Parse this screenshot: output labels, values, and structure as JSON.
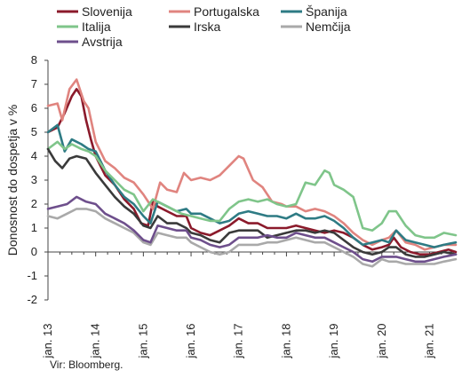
{
  "chart_data": {
    "type": "line",
    "title": "",
    "ylabel": "Donosnost do dospetja v %",
    "xlabel": "",
    "ylim": [
      -2,
      8
    ],
    "yticks": [
      -2,
      -1,
      0,
      1,
      2,
      3,
      4,
      5,
      6,
      7,
      8
    ],
    "xlim": [
      2013.0,
      2021.55
    ],
    "xticks": [
      {
        "x": 2013.0,
        "label": "jan. 13"
      },
      {
        "x": 2014.0,
        "label": "jan. 14"
      },
      {
        "x": 2015.0,
        "label": "jan. 15"
      },
      {
        "x": 2016.0,
        "label": "jan. 16"
      },
      {
        "x": 2017.0,
        "label": "jan. 17"
      },
      {
        "x": 2018.0,
        "label": "jan. 18"
      },
      {
        "x": 2019.0,
        "label": "jan. 19"
      },
      {
        "x": 2020.0,
        "label": "jan. 20"
      },
      {
        "x": 2021.0,
        "label": "jan. 21"
      }
    ],
    "grid": false,
    "legend_position": "top",
    "series": [
      {
        "name": "Slovenija",
        "color": "#8b1a2b",
        "x": [
          2013.0,
          2013.2,
          2013.35,
          2013.5,
          2013.6,
          2013.7,
          2013.8,
          2013.9,
          2014.0,
          2014.2,
          2014.4,
          2014.6,
          2014.8,
          2014.95,
          2015.1,
          2015.2,
          2015.3,
          2015.5,
          2015.7,
          2015.9,
          2016.0,
          2016.2,
          2016.4,
          2016.6,
          2016.8,
          2017.0,
          2017.2,
          2017.4,
          2017.6,
          2017.8,
          2018.0,
          2018.2,
          2018.4,
          2018.6,
          2018.8,
          2019.0,
          2019.2,
          2019.4,
          2019.6,
          2019.8,
          2020.0,
          2020.15,
          2020.25,
          2020.4,
          2020.6,
          2020.8,
          2021.0,
          2021.2,
          2021.4,
          2021.55
        ],
        "y": [
          5.0,
          5.2,
          5.8,
          6.5,
          6.8,
          6.5,
          5.5,
          4.7,
          4.0,
          3.2,
          2.8,
          2.2,
          1.8,
          1.2,
          1.1,
          2.1,
          1.9,
          1.7,
          1.5,
          1.5,
          1.0,
          0.8,
          0.7,
          0.9,
          1.1,
          1.4,
          1.2,
          1.2,
          1.0,
          1.0,
          1.0,
          1.1,
          1.0,
          0.9,
          0.8,
          0.9,
          0.8,
          0.6,
          0.3,
          0.1,
          0.2,
          0.3,
          0.6,
          0.2,
          0.0,
          -0.1,
          -0.1,
          0.0,
          0.1,
          0.0
        ]
      },
      {
        "name": "Portugalska",
        "color": "#e0847f",
        "x": [
          2013.0,
          2013.2,
          2013.3,
          2013.45,
          2013.6,
          2013.75,
          2013.85,
          2014.0,
          2014.2,
          2014.4,
          2014.6,
          2014.8,
          2015.0,
          2015.2,
          2015.35,
          2015.5,
          2015.7,
          2015.85,
          2016.0,
          2016.2,
          2016.4,
          2016.6,
          2016.8,
          2017.0,
          2017.1,
          2017.3,
          2017.5,
          2017.7,
          2017.9,
          2018.0,
          2018.2,
          2018.4,
          2018.6,
          2018.8,
          2019.0,
          2019.2,
          2019.4,
          2019.6,
          2019.8,
          2020.0,
          2020.15,
          2020.3,
          2020.5,
          2020.7,
          2020.9,
          2021.1,
          2021.3,
          2021.55
        ],
        "y": [
          6.1,
          6.2,
          5.5,
          6.8,
          7.2,
          6.3,
          6.0,
          4.6,
          3.8,
          3.5,
          3.1,
          2.9,
          2.4,
          1.8,
          2.9,
          2.6,
          2.5,
          3.3,
          3.0,
          3.1,
          3.0,
          3.2,
          3.6,
          4.0,
          3.9,
          3.0,
          2.7,
          2.1,
          2.0,
          1.9,
          1.9,
          1.7,
          1.8,
          1.7,
          1.5,
          1.2,
          0.8,
          0.5,
          0.3,
          0.5,
          0.6,
          0.9,
          0.4,
          0.3,
          0.1,
          0.2,
          0.3,
          0.3
        ]
      },
      {
        "name": "Španija",
        "color": "#2e7b84",
        "x": [
          2013.0,
          2013.2,
          2013.35,
          2013.5,
          2013.7,
          2013.85,
          2014.0,
          2014.2,
          2014.4,
          2014.6,
          2014.8,
          2015.0,
          2015.15,
          2015.3,
          2015.5,
          2015.7,
          2015.9,
          2016.0,
          2016.2,
          2016.4,
          2016.6,
          2016.8,
          2017.0,
          2017.2,
          2017.4,
          2017.6,
          2017.8,
          2018.0,
          2018.2,
          2018.4,
          2018.6,
          2018.8,
          2019.0,
          2019.2,
          2019.4,
          2019.6,
          2019.8,
          2020.0,
          2020.15,
          2020.3,
          2020.5,
          2020.7,
          2020.9,
          2021.1,
          2021.3,
          2021.55
        ],
        "y": [
          5.0,
          5.3,
          4.2,
          4.7,
          4.5,
          4.3,
          4.2,
          3.4,
          2.8,
          2.3,
          2.0,
          1.5,
          1.2,
          2.1,
          1.9,
          1.7,
          1.8,
          1.6,
          1.6,
          1.4,
          1.2,
          1.3,
          1.6,
          1.7,
          1.6,
          1.5,
          1.5,
          1.4,
          1.6,
          1.4,
          1.4,
          1.5,
          1.3,
          1.0,
          0.6,
          0.3,
          0.4,
          0.5,
          0.4,
          0.9,
          0.5,
          0.4,
          0.3,
          0.2,
          0.3,
          0.4
        ]
      },
      {
        "name": "Italija",
        "color": "#7fc58a",
        "x": [
          2013.0,
          2013.2,
          2013.35,
          2013.5,
          2013.7,
          2013.85,
          2014.0,
          2014.2,
          2014.4,
          2014.6,
          2014.8,
          2015.0,
          2015.2,
          2015.4,
          2015.6,
          2015.8,
          2016.0,
          2016.2,
          2016.4,
          2016.6,
          2016.8,
          2017.0,
          2017.2,
          2017.4,
          2017.6,
          2017.8,
          2018.0,
          2018.2,
          2018.4,
          2018.6,
          2018.8,
          2018.9,
          2019.0,
          2019.2,
          2019.4,
          2019.6,
          2019.8,
          2020.0,
          2020.15,
          2020.3,
          2020.5,
          2020.7,
          2020.9,
          2021.1,
          2021.3,
          2021.55
        ],
        "y": [
          4.3,
          4.6,
          4.3,
          4.5,
          4.3,
          4.2,
          4.0,
          3.4,
          3.0,
          2.6,
          2.4,
          1.7,
          2.2,
          2.0,
          1.8,
          1.6,
          1.5,
          1.4,
          1.3,
          1.3,
          1.8,
          2.1,
          2.2,
          2.1,
          2.2,
          2.0,
          1.9,
          2.0,
          2.9,
          2.8,
          3.4,
          3.3,
          2.8,
          2.6,
          2.3,
          1.0,
          0.9,
          1.2,
          1.7,
          1.7,
          1.1,
          0.7,
          0.6,
          0.6,
          0.8,
          0.7
        ]
      },
      {
        "name": "Irska",
        "color": "#3a3a3a",
        "x": [
          2013.0,
          2013.15,
          2013.3,
          2013.45,
          2013.6,
          2013.8,
          2014.0,
          2014.2,
          2014.4,
          2014.6,
          2014.8,
          2015.0,
          2015.15,
          2015.3,
          2015.5,
          2015.7,
          2015.9,
          2016.0,
          2016.2,
          2016.4,
          2016.6,
          2016.8,
          2017.0,
          2017.2,
          2017.4,
          2017.6,
          2017.8,
          2018.0,
          2018.2,
          2018.4,
          2018.6,
          2018.8,
          2019.0,
          2019.2,
          2019.4,
          2019.6,
          2019.8,
          2020.0,
          2020.15,
          2020.3,
          2020.5,
          2020.7,
          2020.9,
          2021.1,
          2021.3,
          2021.55
        ],
        "y": [
          4.3,
          3.8,
          3.5,
          3.9,
          4.0,
          3.9,
          3.3,
          2.8,
          2.3,
          1.9,
          1.6,
          1.1,
          1.0,
          1.5,
          1.2,
          1.2,
          1.0,
          0.8,
          0.7,
          0.5,
          0.4,
          0.8,
          0.9,
          0.9,
          0.9,
          0.6,
          0.7,
          0.8,
          0.9,
          0.9,
          0.8,
          0.9,
          0.8,
          0.5,
          0.2,
          0.0,
          -0.1,
          0.0,
          0.2,
          0.2,
          -0.1,
          -0.2,
          -0.2,
          -0.1,
          0.0,
          -0.1
        ]
      },
      {
        "name": "Nemčija",
        "color": "#a9a9a9",
        "x": [
          2013.0,
          2013.2,
          2013.4,
          2013.6,
          2013.8,
          2014.0,
          2014.2,
          2014.4,
          2014.6,
          2014.8,
          2015.0,
          2015.15,
          2015.3,
          2015.5,
          2015.7,
          2015.9,
          2016.0,
          2016.2,
          2016.4,
          2016.6,
          2016.8,
          2017.0,
          2017.2,
          2017.4,
          2017.6,
          2017.8,
          2018.0,
          2018.2,
          2018.4,
          2018.6,
          2018.8,
          2019.0,
          2019.2,
          2019.4,
          2019.6,
          2019.8,
          2020.0,
          2020.15,
          2020.3,
          2020.5,
          2020.7,
          2020.9,
          2021.1,
          2021.3,
          2021.55
        ],
        "y": [
          1.5,
          1.4,
          1.6,
          1.8,
          1.8,
          1.7,
          1.4,
          1.2,
          1.0,
          0.8,
          0.4,
          0.3,
          0.8,
          0.7,
          0.6,
          0.6,
          0.4,
          0.2,
          0.0,
          -0.1,
          0.0,
          0.3,
          0.3,
          0.3,
          0.4,
          0.4,
          0.5,
          0.6,
          0.5,
          0.4,
          0.4,
          0.2,
          0.0,
          -0.2,
          -0.5,
          -0.6,
          -0.3,
          -0.4,
          -0.4,
          -0.5,
          -0.5,
          -0.5,
          -0.5,
          -0.4,
          -0.3
        ]
      },
      {
        "name": "Avstrija",
        "color": "#6e4f8c",
        "x": [
          2013.0,
          2013.2,
          2013.4,
          2013.6,
          2013.8,
          2014.0,
          2014.2,
          2014.4,
          2014.6,
          2014.8,
          2015.0,
          2015.15,
          2015.3,
          2015.5,
          2015.7,
          2015.9,
          2016.0,
          2016.2,
          2016.4,
          2016.6,
          2016.8,
          2017.0,
          2017.2,
          2017.4,
          2017.6,
          2017.8,
          2018.0,
          2018.2,
          2018.4,
          2018.6,
          2018.8,
          2019.0,
          2019.2,
          2019.4,
          2019.6,
          2019.8,
          2020.0,
          2020.15,
          2020.3,
          2020.5,
          2020.7,
          2020.9,
          2021.1,
          2021.3,
          2021.55
        ],
        "y": [
          1.8,
          1.9,
          2.0,
          2.3,
          2.1,
          2.0,
          1.6,
          1.4,
          1.2,
          0.9,
          0.5,
          0.4,
          1.1,
          1.0,
          0.9,
          0.9,
          0.6,
          0.5,
          0.3,
          0.2,
          0.3,
          0.6,
          0.6,
          0.6,
          0.7,
          0.6,
          0.6,
          0.8,
          0.7,
          0.6,
          0.6,
          0.4,
          0.2,
          0.0,
          -0.3,
          -0.4,
          -0.2,
          -0.2,
          -0.2,
          -0.3,
          -0.4,
          -0.4,
          -0.3,
          -0.2,
          -0.1
        ]
      }
    ]
  },
  "source": "Vir: Bloomberg."
}
